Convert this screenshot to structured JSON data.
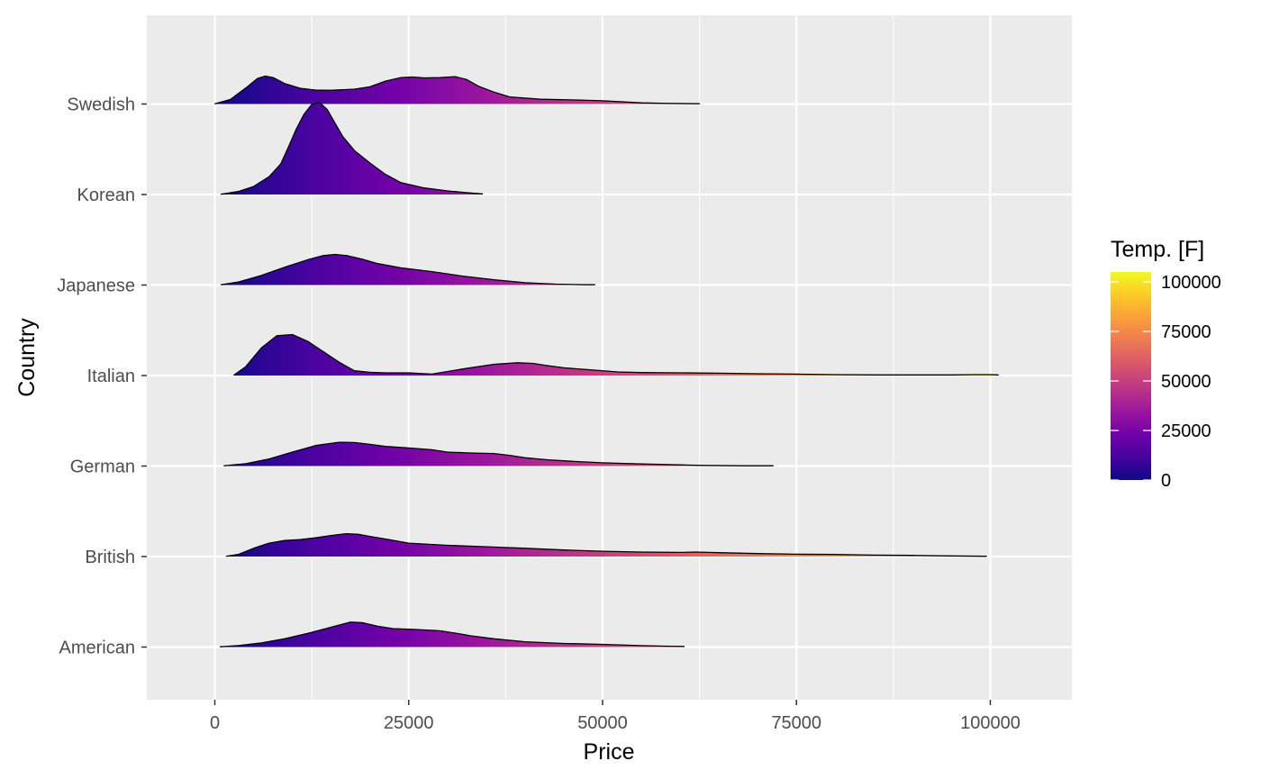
{
  "chart_data": {
    "type": "area",
    "subtype": "ridgeline",
    "title": "",
    "xlabel": "Price",
    "ylabel": "Country",
    "xlim": [
      -8500,
      110000
    ],
    "x_ticks": [
      0,
      25000,
      50000,
      75000,
      100000
    ],
    "x_tick_labels": [
      "0",
      "25000",
      "50000",
      "75000",
      "100000"
    ],
    "grid": true,
    "legend": {
      "title": "Temp. [F]",
      "position": "right",
      "ticks": [
        0,
        25000,
        50000,
        75000,
        100000
      ],
      "tick_labels": [
        "0",
        "25000",
        "50000",
        "75000",
        "100000"
      ],
      "range": [
        0,
        105000
      ],
      "palette": [
        "#0D0887",
        "#46039F",
        "#7201A8",
        "#9C179E",
        "#BD3786",
        "#D8576B",
        "#ED7953",
        "#FB9F3A",
        "#FDCA26",
        "#F0F921"
      ]
    },
    "categories": [
      "American",
      "British",
      "German",
      "Italian",
      "Japanese",
      "Korean",
      "Swedish"
    ],
    "series": [
      {
        "name": "American",
        "x": [
          700,
          3000,
          6000,
          9000,
          12000,
          14000,
          16000,
          17500,
          19000,
          21000,
          23000,
          26000,
          29000,
          31000,
          33000,
          36000,
          40000,
          45000,
          50000,
          55000,
          58000,
          60500
        ],
        "y": [
          0.01,
          0.05,
          0.14,
          0.28,
          0.46,
          0.6,
          0.74,
          0.84,
          0.82,
          0.7,
          0.62,
          0.59,
          0.55,
          0.47,
          0.38,
          0.28,
          0.18,
          0.12,
          0.09,
          0.05,
          0.03,
          0.02
        ]
      },
      {
        "name": "British",
        "x": [
          1500,
          3000,
          5000,
          7000,
          9000,
          11000,
          13000,
          15000,
          17000,
          18500,
          20000,
          22000,
          25000,
          30000,
          35000,
          40000,
          45000,
          50000,
          55000,
          60000,
          62000,
          65000,
          70000,
          75000,
          80000,
          85000,
          90000,
          95000,
          99500
        ],
        "y": [
          0.01,
          0.07,
          0.28,
          0.45,
          0.54,
          0.57,
          0.63,
          0.71,
          0.77,
          0.75,
          0.68,
          0.59,
          0.45,
          0.38,
          0.33,
          0.28,
          0.22,
          0.18,
          0.15,
          0.14,
          0.15,
          0.13,
          0.1,
          0.08,
          0.07,
          0.05,
          0.04,
          0.02,
          0.01
        ]
      },
      {
        "name": "German",
        "x": [
          1200,
          4000,
          7000,
          10000,
          13000,
          16000,
          18000,
          20000,
          22000,
          25000,
          28000,
          30000,
          33000,
          36000,
          38000,
          40000,
          43000,
          46000,
          50000,
          55000,
          60000,
          63000,
          68000,
          72000
        ],
        "y": [
          0.01,
          0.08,
          0.24,
          0.47,
          0.69,
          0.8,
          0.79,
          0.73,
          0.66,
          0.61,
          0.55,
          0.47,
          0.44,
          0.42,
          0.36,
          0.28,
          0.21,
          0.16,
          0.11,
          0.07,
          0.04,
          0.02,
          0.01,
          0.01
        ]
      },
      {
        "name": "Italian",
        "x": [
          2500,
          4000,
          6000,
          8000,
          10000,
          12000,
          14000,
          16000,
          18000,
          20000,
          22000,
          25000,
          28000,
          32000,
          36000,
          39000,
          41000,
          43000,
          45000,
          48000,
          52000,
          55000,
          60000,
          65000,
          70000,
          75000,
          80000,
          85000,
          90000,
          95000,
          98000,
          100000,
          101000
        ],
        "y": [
          0.02,
          0.3,
          0.93,
          1.34,
          1.38,
          1.15,
          0.8,
          0.45,
          0.16,
          0.11,
          0.09,
          0.09,
          0.05,
          0.22,
          0.38,
          0.43,
          0.41,
          0.33,
          0.26,
          0.2,
          0.12,
          0.1,
          0.09,
          0.08,
          0.06,
          0.05,
          0.03,
          0.02,
          0.02,
          0.02,
          0.03,
          0.03,
          0.02
        ]
      },
      {
        "name": "Japanese",
        "x": [
          800,
          3000,
          6000,
          9000,
          12000,
          14000,
          15500,
          17000,
          19000,
          21000,
          24000,
          28000,
          32000,
          36000,
          40000,
          44000,
          48000,
          49000
        ],
        "y": [
          0.01,
          0.1,
          0.32,
          0.6,
          0.85,
          0.99,
          1.03,
          0.99,
          0.87,
          0.72,
          0.58,
          0.45,
          0.3,
          0.18,
          0.08,
          0.03,
          0.01,
          0.01
        ]
      },
      {
        "name": "Korean",
        "x": [
          800,
          3000,
          5000,
          7000,
          8500,
          9500,
          10500,
          11500,
          12500,
          13500,
          14500,
          15500,
          16500,
          18000,
          20000,
          22000,
          24000,
          27000,
          30000,
          33000,
          34500
        ],
        "y": [
          0.01,
          0.1,
          0.27,
          0.6,
          1.03,
          1.6,
          2.2,
          2.7,
          3.03,
          3.1,
          2.86,
          2.4,
          1.95,
          1.48,
          1.06,
          0.68,
          0.4,
          0.22,
          0.12,
          0.05,
          0.02
        ]
      },
      {
        "name": "Swedish",
        "x": [
          0,
          2000,
          4000,
          5500,
          6500,
          7500,
          9000,
          11000,
          13000,
          15000,
          18000,
          20000,
          22000,
          24000,
          25500,
          27000,
          29000,
          31000,
          32500,
          34000,
          36000,
          38000,
          42000,
          46000,
          50000,
          55000,
          58000,
          62500
        ],
        "y": [
          0.01,
          0.15,
          0.54,
          0.86,
          0.94,
          0.89,
          0.69,
          0.53,
          0.47,
          0.46,
          0.5,
          0.58,
          0.77,
          0.89,
          0.91,
          0.88,
          0.89,
          0.92,
          0.82,
          0.6,
          0.4,
          0.24,
          0.16,
          0.14,
          0.11,
          0.04,
          0.02,
          0.01
        ]
      }
    ]
  }
}
